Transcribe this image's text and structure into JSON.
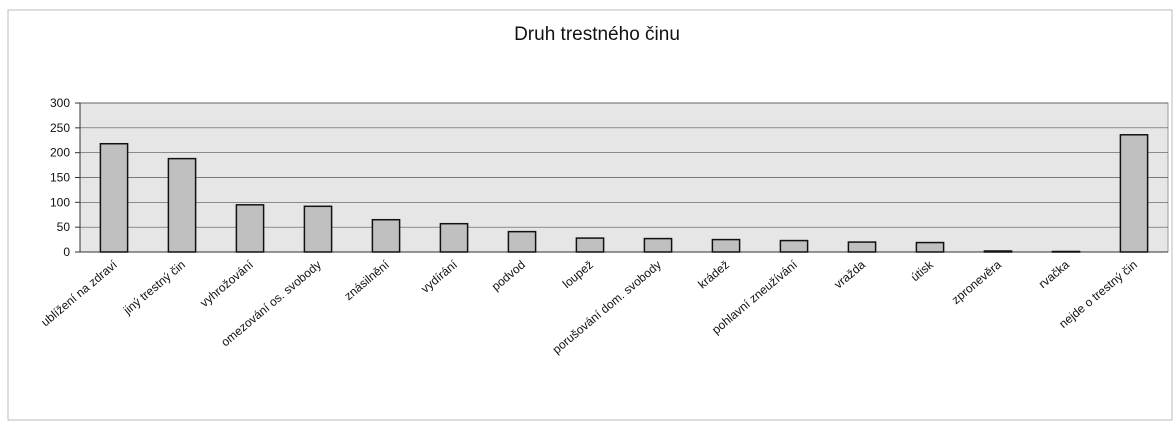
{
  "chart_data": {
    "type": "bar",
    "title": "Druh trestného činu",
    "categories": [
      "ublížení na zdraví",
      "jiný trestný čin",
      "vyhrožování",
      "omezování os. svobody",
      "znásilnění",
      "vydírání",
      "podvod",
      "loupež",
      "porušování dom. svobody",
      "krádež",
      "pohlavní zneužívání",
      "vražda",
      "útisk",
      "zpronevěra",
      "rvačka",
      "nejde o trestný čin"
    ],
    "values": [
      218,
      188,
      95,
      92,
      65,
      57,
      41,
      28,
      27,
      25,
      23,
      20,
      19,
      2,
      1,
      236
    ],
    "color": "#c0c0c0",
    "ylim": [
      0,
      300
    ],
    "yticks": [
      0,
      50,
      100,
      150,
      200,
      250,
      300
    ],
    "grid": true
  }
}
